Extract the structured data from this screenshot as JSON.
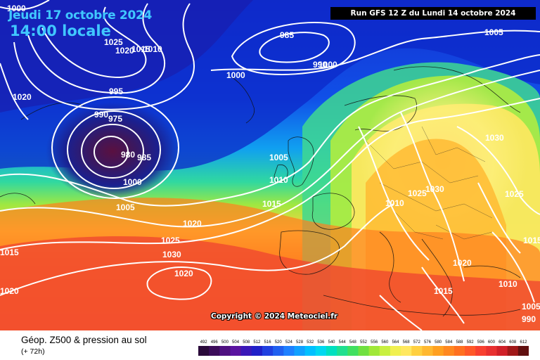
{
  "header": {
    "date": "Jeudi 17 octobre 2024",
    "local_time": "14:00 locale",
    "run": "Run GFS 12 Z du Lundi 14 octobre 2024"
  },
  "copyright": "Copyright © 2024 Meteociel.fr",
  "footer": {
    "title": "Géop. Z500 & pression au sol",
    "subtitle": "(+ 72h)"
  },
  "legend": {
    "values": [
      "492",
      "496",
      "500",
      "504",
      "508",
      "512",
      "516",
      "520",
      "524",
      "528",
      "532",
      "536",
      "540",
      "544",
      "548",
      "552",
      "556",
      "560",
      "564",
      "568",
      "572",
      "576",
      "580",
      "584",
      "588",
      "592",
      "596",
      "600",
      "604",
      "608",
      "612"
    ],
    "colors": [
      "#2a0a3a",
      "#3c0c5a",
      "#4e1080",
      "#5a14a0",
      "#3a18b8",
      "#2020c8",
      "#2040e0",
      "#2060f0",
      "#1e80ff",
      "#10a0ff",
      "#00c0ff",
      "#00d8f0",
      "#00e0c0",
      "#20e090",
      "#40e060",
      "#70e040",
      "#a0e838",
      "#c8f040",
      "#f0f050",
      "#ffe860",
      "#ffd040",
      "#ffb830",
      "#ffa020",
      "#ff8820",
      "#ff7020",
      "#ff5828",
      "#f84030",
      "#e83030",
      "#d02028",
      "#a01818",
      "#601010"
    ]
  },
  "isobar_labels": [
    "1000",
    "1025",
    "1020",
    "1015",
    "1010",
    "985",
    "990",
    "1005",
    "1000",
    "995",
    "990",
    "975",
    "980",
    "985",
    "1000",
    "1005",
    "1005",
    "1010",
    "1015",
    "1020",
    "1025",
    "1030",
    "1020",
    "1015",
    "1020",
    "1025",
    "1030",
    "1030",
    "1025",
    "1020",
    "1015",
    "1010",
    "1005",
    "990",
    "1000",
    "1020",
    "1015",
    "1010"
  ]
}
